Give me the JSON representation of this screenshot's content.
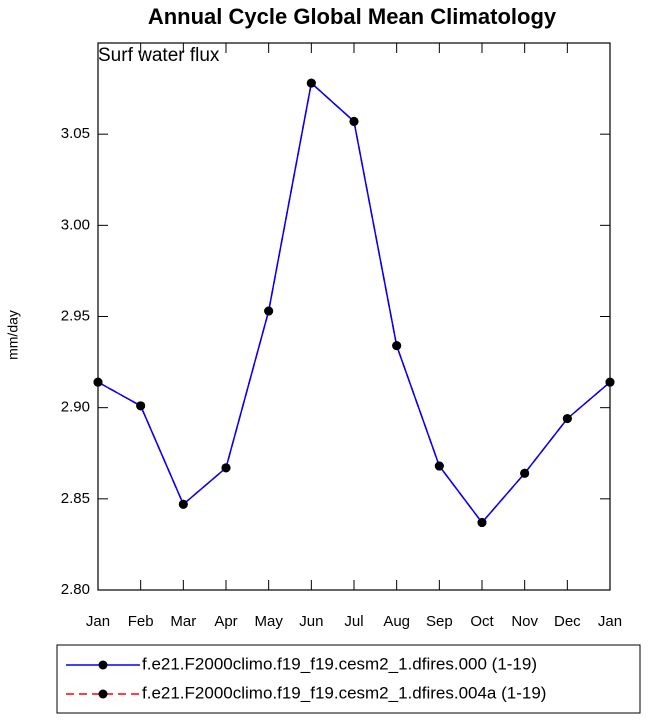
{
  "chart_data": {
    "type": "line",
    "title": "Annual Cycle Global Mean Climatology",
    "subtitle": "Surf water flux",
    "y_label": "mm/day",
    "categories": [
      "Jan",
      "Feb",
      "Mar",
      "Apr",
      "May",
      "Jun",
      "Jul",
      "Aug",
      "Sep",
      "Oct",
      "Nov",
      "Dec",
      "Jan"
    ],
    "series": [
      {
        "name": "f.e21.F2000climo.f19_f19.cesm2_1.dfires.004a (1-19)",
        "color": "#ff0000",
        "dash": true,
        "values": [
          2.914,
          2.901,
          2.847,
          2.867,
          2.953,
          3.078,
          3.057,
          2.934,
          2.868,
          2.837,
          2.864,
          2.894,
          2.914
        ]
      },
      {
        "name": "f.e21.F2000climo.f19_f19.cesm2_1.dfires.000 (1-19)",
        "color": "#0000ff",
        "dash": false,
        "values": [
          2.914,
          2.901,
          2.847,
          2.867,
          2.953,
          3.078,
          3.057,
          2.934,
          2.868,
          2.837,
          2.864,
          2.894,
          2.914
        ]
      }
    ],
    "ylim": [
      2.8,
      3.1
    ],
    "yticks": [
      {
        "value": 2.8,
        "label": "2.80"
      },
      2.85,
      {
        "value": 2.9,
        "label": "2.90"
      },
      2.95,
      {
        "value": 3.0,
        "label": "3.00"
      },
      3.05
    ]
  }
}
